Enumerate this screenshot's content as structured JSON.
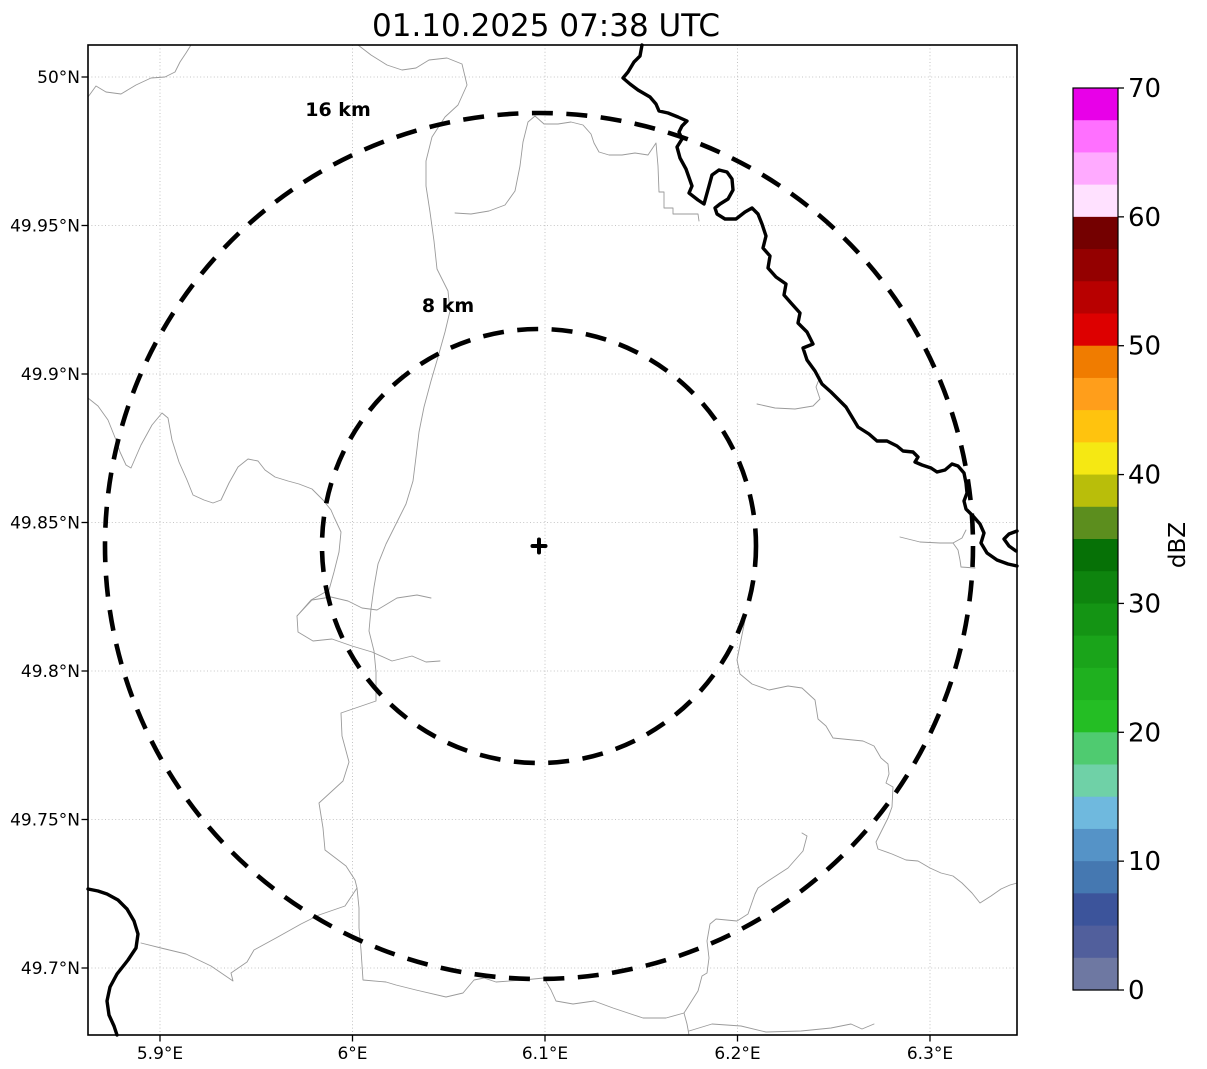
{
  "title": "01.10.2025 07:38 UTC",
  "axes": {
    "x_ticks": [
      "5.9°E",
      "6°E",
      "6.1°E",
      "6.2°E",
      "6.3°E"
    ],
    "y_ticks": [
      "50°N",
      "49.95°N",
      "49.9°N",
      "49.85°N",
      "49.8°N",
      "49.75°N",
      "49.7°N"
    ]
  },
  "range_rings": [
    {
      "label": "16 km",
      "radius_km": 16
    },
    {
      "label": "8 km",
      "radius_km": 8
    }
  ],
  "radar_marker": {
    "symbol": "+"
  },
  "colorbar": {
    "label": "dBZ",
    "min": 0,
    "max": 70,
    "segment_step_dbz": 2.5,
    "ticks": [
      {
        "label": "0",
        "value": 0
      },
      {
        "label": "10",
        "value": 10
      },
      {
        "label": "20",
        "value": 20
      },
      {
        "label": "30",
        "value": 30
      },
      {
        "label": "40",
        "value": 40
      },
      {
        "label": "50",
        "value": 50
      },
      {
        "label": "60",
        "value": 60
      },
      {
        "label": "70",
        "value": 70
      }
    ],
    "colors_low_to_high": [
      "#6e78a2",
      "#515f9c",
      "#3c549b",
      "#4578b1",
      "#5593c7",
      "#6fb9de",
      "#6fd1a7",
      "#4fcb70",
      "#24be24",
      "#1fb01f",
      "#1aa41a",
      "#149414",
      "#0e840e",
      "#067106",
      "#5c8e1e",
      "#b9be0a",
      "#f5e813",
      "#ffc30e",
      "#ff9e1b",
      "#f07c00",
      "#dd0000",
      "#b80000",
      "#940000",
      "#740000",
      "#ffe1ff",
      "#ffaaff",
      "#ff70ff",
      "#e800e8"
    ]
  }
}
